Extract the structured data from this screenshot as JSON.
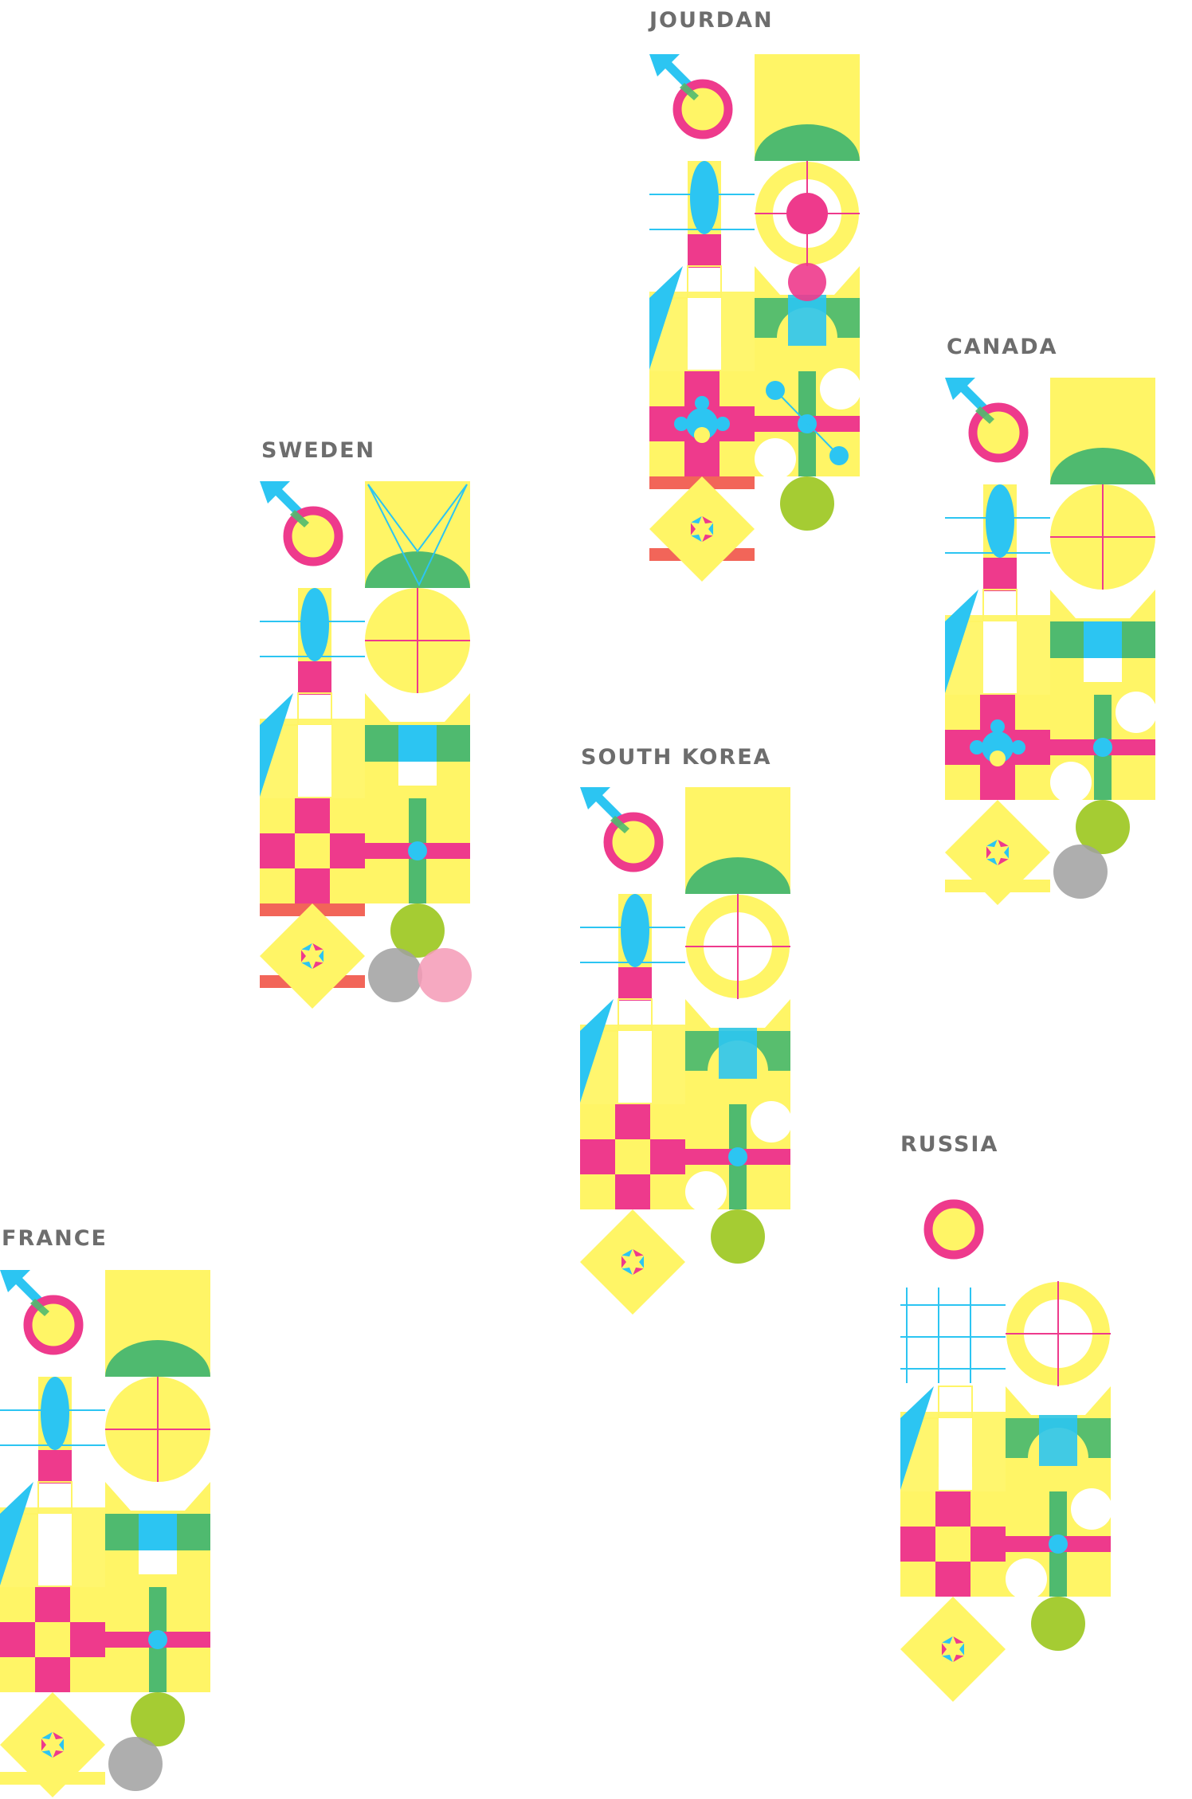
{
  "colors": {
    "yellow": "#fff566",
    "magenta": "#ee3a8c",
    "cyan": "#2cc5f2",
    "green": "#4fba6f",
    "lime": "#a5cc33",
    "gray": "#a0a0a0",
    "red": "#f04a3c",
    "pink": "#f59ab6",
    "label": "#6d6d6d"
  },
  "countries": [
    {
      "key": "jourdan",
      "name": "JOURDAN"
    },
    {
      "key": "canada",
      "name": "CANADA"
    },
    {
      "key": "sweden",
      "name": "SWEDEN"
    },
    {
      "key": "south_korea",
      "name": "SOUTH KOREA"
    },
    {
      "key": "russia",
      "name": "RUSSIA"
    },
    {
      "key": "france",
      "name": "FRANCE"
    }
  ]
}
